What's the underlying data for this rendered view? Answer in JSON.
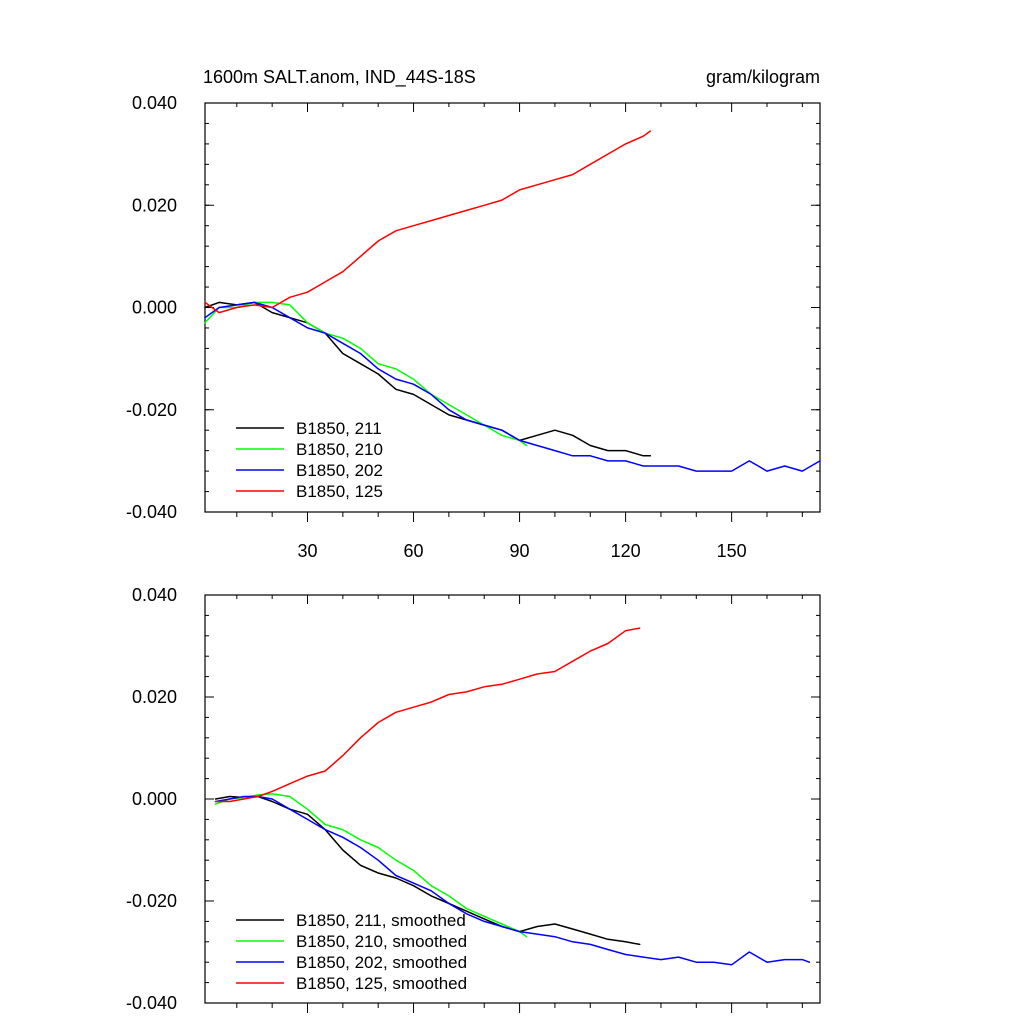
{
  "figure": {
    "title_left": "1600m SALT.anom, IND_44S-18S",
    "title_right": "gram/kilogram"
  },
  "chart_data": [
    {
      "type": "line",
      "panel": "top",
      "title": "1600m SALT.anom, IND_44S-18S",
      "units": "gram/kilogram",
      "xlim": [
        1,
        175
      ],
      "ylim": [
        -0.04,
        0.04
      ],
      "x_ticks": [
        30,
        60,
        90,
        120,
        150
      ],
      "x_tick_labels": [
        "30",
        "60",
        "90",
        "120",
        "150"
      ],
      "y_ticks": [
        -0.04,
        -0.02,
        0.0,
        0.02,
        0.04
      ],
      "y_tick_labels": [
        "-0.040",
        "-0.020",
        "0.000",
        "0.020",
        "0.040"
      ],
      "legend_position": "bottom-left",
      "series": [
        {
          "name": "B1850, 211",
          "color": "#000000",
          "x": [
            1,
            5,
            10,
            15,
            20,
            25,
            30,
            35,
            40,
            45,
            50,
            55,
            60,
            65,
            70,
            75,
            80,
            85,
            90,
            95,
            100,
            105,
            110,
            115,
            120,
            125,
            127
          ],
          "y": [
            0.0,
            0.001,
            0.0005,
            0.001,
            -0.001,
            -0.002,
            -0.003,
            -0.005,
            -0.009,
            -0.011,
            -0.013,
            -0.016,
            -0.017,
            -0.019,
            -0.021,
            -0.022,
            -0.023,
            -0.024,
            -0.026,
            -0.025,
            -0.024,
            -0.025,
            -0.027,
            -0.028,
            -0.028,
            -0.029,
            -0.029
          ]
        },
        {
          "name": "B1850, 210",
          "color": "#00ff00",
          "x": [
            1,
            5,
            10,
            15,
            20,
            25,
            30,
            35,
            40,
            45,
            50,
            55,
            60,
            65,
            70,
            75,
            80,
            85,
            90,
            92
          ],
          "y": [
            -0.003,
            0.0,
            0.0,
            0.001,
            0.001,
            0.0005,
            -0.003,
            -0.005,
            -0.006,
            -0.008,
            -0.011,
            -0.012,
            -0.014,
            -0.017,
            -0.019,
            -0.021,
            -0.023,
            -0.025,
            -0.026,
            -0.027
          ]
        },
        {
          "name": "B1850, 202",
          "color": "#0000ff",
          "x": [
            1,
            5,
            10,
            15,
            20,
            25,
            30,
            35,
            40,
            45,
            50,
            55,
            60,
            65,
            70,
            75,
            80,
            85,
            90,
            95,
            100,
            105,
            110,
            115,
            120,
            125,
            130,
            135,
            140,
            145,
            150,
            155,
            160,
            165,
            170,
            175
          ],
          "y": [
            -0.002,
            0.0,
            0.0005,
            0.001,
            0.0,
            -0.002,
            -0.004,
            -0.005,
            -0.007,
            -0.009,
            -0.012,
            -0.014,
            -0.015,
            -0.017,
            -0.02,
            -0.022,
            -0.023,
            -0.024,
            -0.026,
            -0.027,
            -0.028,
            -0.029,
            -0.029,
            -0.03,
            -0.03,
            -0.031,
            -0.031,
            -0.031,
            -0.032,
            -0.032,
            -0.032,
            -0.03,
            -0.032,
            -0.031,
            -0.032,
            -0.03
          ]
        },
        {
          "name": "B1850, 125",
          "color": "#ff0000",
          "x": [
            1,
            5,
            10,
            15,
            20,
            25,
            30,
            35,
            40,
            45,
            50,
            55,
            60,
            65,
            70,
            75,
            80,
            85,
            90,
            95,
            100,
            105,
            110,
            115,
            120,
            125,
            127
          ],
          "y": [
            0.001,
            -0.001,
            0.0,
            0.0005,
            0.0,
            0.002,
            0.003,
            0.005,
            0.007,
            0.01,
            0.013,
            0.015,
            0.016,
            0.017,
            0.018,
            0.019,
            0.02,
            0.021,
            0.023,
            0.024,
            0.025,
            0.026,
            0.028,
            0.03,
            0.032,
            0.0335,
            0.0345
          ]
        }
      ]
    },
    {
      "type": "line",
      "panel": "bottom",
      "units": "gram/kilogram",
      "xlim": [
        1,
        175
      ],
      "ylim": [
        -0.04,
        0.04
      ],
      "x_ticks": [
        30,
        60,
        90,
        120,
        150
      ],
      "y_ticks": [
        -0.04,
        -0.02,
        0.0,
        0.02,
        0.04
      ],
      "y_tick_labels": [
        "-0.040",
        "-0.020",
        "0.000",
        "0.020",
        "0.040"
      ],
      "legend_position": "bottom-left",
      "series": [
        {
          "name": "B1850, 211, smoothed",
          "color": "#000000",
          "x": [
            4,
            8,
            12,
            16,
            20,
            25,
            30,
            35,
            40,
            45,
            50,
            55,
            60,
            65,
            70,
            75,
            80,
            85,
            90,
            95,
            100,
            105,
            110,
            115,
            120,
            124
          ],
          "y": [
            0.0,
            0.0005,
            0.0003,
            0.0005,
            -0.0005,
            -0.002,
            -0.003,
            -0.006,
            -0.01,
            -0.013,
            -0.0145,
            -0.0155,
            -0.017,
            -0.019,
            -0.0205,
            -0.022,
            -0.0235,
            -0.025,
            -0.026,
            -0.025,
            -0.0245,
            -0.0255,
            -0.0265,
            -0.0275,
            -0.028,
            -0.0285
          ]
        },
        {
          "name": "B1850, 210, smoothed",
          "color": "#00ff00",
          "x": [
            4,
            8,
            12,
            16,
            20,
            25,
            30,
            35,
            40,
            45,
            50,
            55,
            60,
            65,
            70,
            75,
            80,
            85,
            90,
            92
          ],
          "y": [
            -0.001,
            0.0,
            0.0003,
            0.0008,
            0.001,
            0.0005,
            -0.002,
            -0.005,
            -0.006,
            -0.008,
            -0.0095,
            -0.012,
            -0.014,
            -0.017,
            -0.019,
            -0.0215,
            -0.023,
            -0.0245,
            -0.026,
            -0.027
          ]
        },
        {
          "name": "B1850, 202, smoothed",
          "color": "#0000ff",
          "x": [
            4,
            8,
            12,
            16,
            20,
            25,
            30,
            35,
            40,
            45,
            50,
            55,
            60,
            65,
            70,
            75,
            80,
            85,
            90,
            95,
            100,
            105,
            110,
            115,
            120,
            125,
            130,
            135,
            140,
            145,
            150,
            155,
            160,
            165,
            170,
            172
          ],
          "y": [
            -0.0005,
            0.0,
            0.0005,
            0.0005,
            0.0,
            -0.002,
            -0.004,
            -0.006,
            -0.0075,
            -0.0095,
            -0.012,
            -0.015,
            -0.0165,
            -0.018,
            -0.0205,
            -0.0225,
            -0.024,
            -0.025,
            -0.026,
            -0.0265,
            -0.027,
            -0.028,
            -0.0285,
            -0.0295,
            -0.0305,
            -0.031,
            -0.0315,
            -0.031,
            -0.032,
            -0.032,
            -0.0325,
            -0.03,
            -0.032,
            -0.0315,
            -0.0315,
            -0.032
          ]
        },
        {
          "name": "B1850, 125, smoothed",
          "color": "#ff0000",
          "x": [
            4,
            8,
            12,
            16,
            20,
            25,
            30,
            35,
            40,
            45,
            50,
            55,
            60,
            65,
            70,
            75,
            80,
            85,
            90,
            95,
            100,
            105,
            110,
            115,
            120,
            124
          ],
          "y": [
            -0.0005,
            -0.0005,
            0.0,
            0.0005,
            0.0015,
            0.003,
            0.0045,
            0.0055,
            0.0085,
            0.012,
            0.015,
            0.017,
            0.018,
            0.019,
            0.0205,
            0.021,
            0.022,
            0.0225,
            0.0235,
            0.0245,
            0.025,
            0.027,
            0.029,
            0.0305,
            0.033,
            0.0335
          ]
        }
      ]
    }
  ]
}
